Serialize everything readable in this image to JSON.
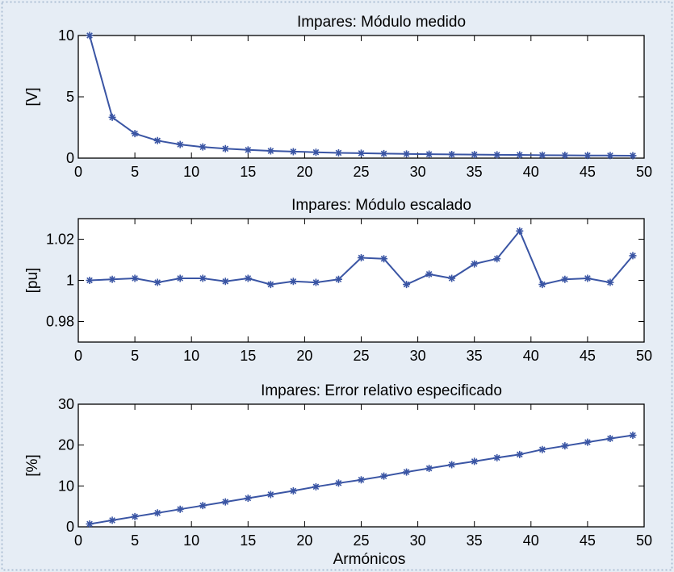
{
  "colors": {
    "background": "#e6edf5",
    "line": "#3a55a4",
    "frame": "#9db3cc"
  },
  "chart_data": [
    {
      "type": "line",
      "title": "Impares: Módulo medido",
      "xlabel": "",
      "ylabel": "[V]",
      "xlim": [
        0,
        50
      ],
      "ylim": [
        0,
        10
      ],
      "xticks": [
        0,
        5,
        10,
        15,
        20,
        25,
        30,
        35,
        40,
        45,
        50
      ],
      "yticks": [
        0,
        5,
        10
      ],
      "ytick_labels": [
        "0",
        "5",
        "10"
      ],
      "marker": "asterisk",
      "x": [
        1,
        3,
        5,
        7,
        9,
        11,
        13,
        15,
        17,
        19,
        21,
        23,
        25,
        27,
        29,
        31,
        33,
        35,
        37,
        39,
        41,
        43,
        45,
        47,
        49
      ],
      "y": [
        10,
        3.33,
        2.0,
        1.43,
        1.11,
        0.91,
        0.77,
        0.67,
        0.59,
        0.53,
        0.48,
        0.43,
        0.4,
        0.37,
        0.34,
        0.32,
        0.3,
        0.29,
        0.27,
        0.26,
        0.24,
        0.23,
        0.22,
        0.21,
        0.2
      ]
    },
    {
      "type": "line",
      "title": "Impares: Módulo escalado",
      "xlabel": "",
      "ylabel": "[pu]",
      "xlim": [
        0,
        50
      ],
      "ylim": [
        0.97,
        1.03
      ],
      "xticks": [
        0,
        5,
        10,
        15,
        20,
        25,
        30,
        35,
        40,
        45,
        50
      ],
      "yticks": [
        0.98,
        1.0,
        1.02
      ],
      "ytick_labels": [
        "0.98",
        "1",
        "1.02"
      ],
      "marker": "asterisk",
      "x": [
        1,
        3,
        5,
        7,
        9,
        11,
        13,
        15,
        17,
        19,
        21,
        23,
        25,
        27,
        29,
        31,
        33,
        35,
        37,
        39,
        41,
        43,
        45,
        47,
        49
      ],
      "y": [
        1.0,
        1.0005,
        1.001,
        0.999,
        1.001,
        1.001,
        0.9995,
        1.001,
        0.998,
        0.9995,
        0.999,
        1.0005,
        1.011,
        1.0105,
        0.998,
        1.003,
        1.001,
        1.008,
        1.0105,
        1.024,
        0.998,
        1.0005,
        1.001,
        0.999,
        1.012
      ]
    },
    {
      "type": "line",
      "title": "Impares: Error relativo especificado",
      "xlabel": "Armónicos",
      "ylabel": "[%]",
      "xlim": [
        0,
        50
      ],
      "ylim": [
        0,
        30
      ],
      "xticks": [
        0,
        5,
        10,
        15,
        20,
        25,
        30,
        35,
        40,
        45,
        50
      ],
      "yticks": [
        0,
        10,
        20,
        30
      ],
      "ytick_labels": [
        "0",
        "10",
        "20",
        "30"
      ],
      "marker": "asterisk",
      "x": [
        1,
        3,
        5,
        7,
        9,
        11,
        13,
        15,
        17,
        19,
        21,
        23,
        25,
        27,
        29,
        31,
        33,
        35,
        37,
        39,
        41,
        43,
        45,
        47,
        49
      ],
      "y": [
        0.7,
        1.6,
        2.5,
        3.4,
        4.3,
        5.2,
        6.1,
        7.0,
        7.9,
        8.8,
        9.8,
        10.7,
        11.5,
        12.4,
        13.4,
        14.3,
        15.2,
        16.0,
        16.9,
        17.7,
        18.9,
        19.8,
        20.7,
        21.6,
        22.4
      ]
    }
  ]
}
